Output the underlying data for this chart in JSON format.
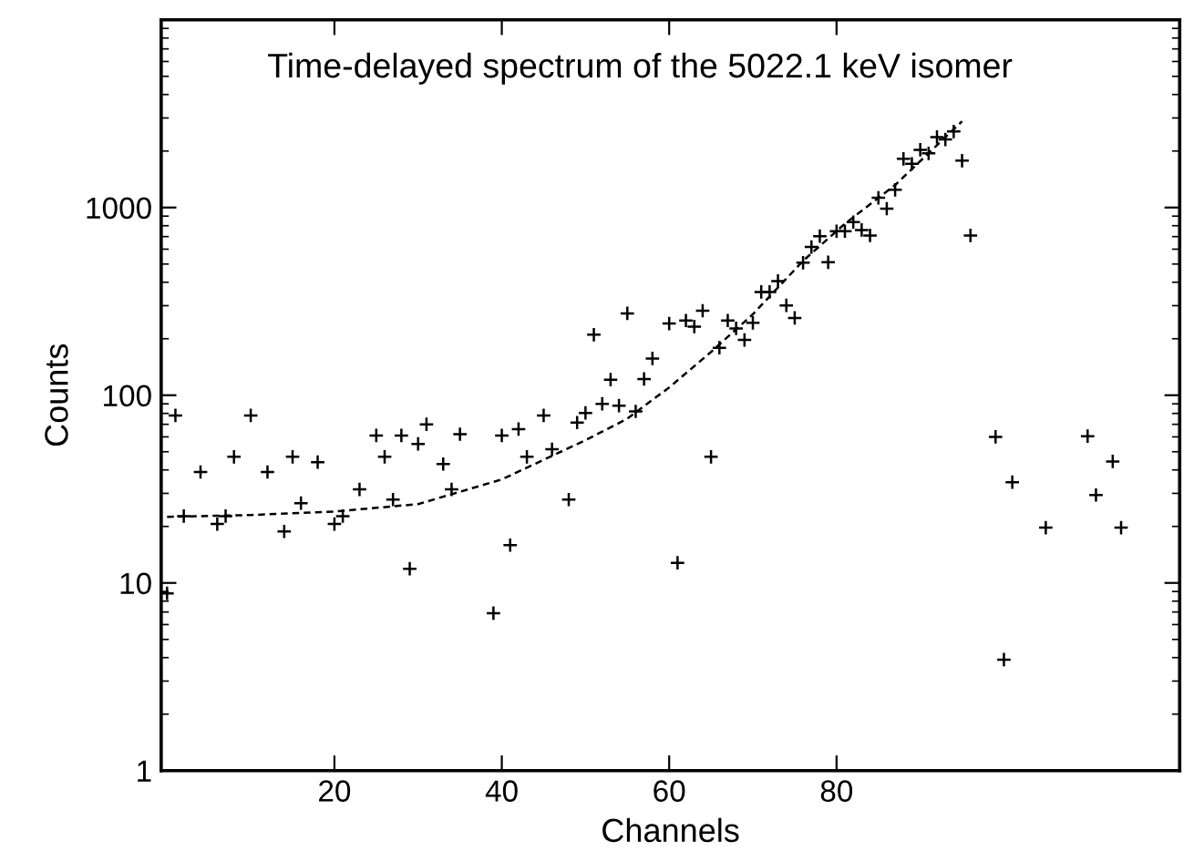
{
  "chart_data": {
    "type": "scatter",
    "title": "Time-delayed spectrum of the 5022.1 keV isomer",
    "xlabel": "Channels",
    "ylabel": "Counts",
    "log": "y",
    "xlim": [
      -0.7,
      121
    ],
    "ylim": [
      1,
      10000
    ],
    "xticks": [
      20,
      40,
      60,
      80
    ],
    "yticks": [
      1,
      10,
      100,
      1000
    ],
    "grid": false,
    "series": [
      {
        "color": "#000000",
        "marker": "cross",
        "x": [
          0,
          1,
          2,
          4,
          6,
          7,
          8,
          10,
          12,
          14,
          15,
          16,
          18,
          20,
          21,
          23,
          25,
          26,
          27,
          28,
          29,
          30,
          31,
          33,
          34,
          35,
          39,
          40,
          41,
          42,
          43,
          45,
          46,
          48,
          49,
          50,
          51,
          52,
          53,
          54,
          55,
          56,
          57,
          58,
          60,
          61,
          62,
          63,
          64,
          65,
          66,
          67,
          68,
          69,
          70,
          71,
          72,
          73,
          74,
          75,
          76,
          77,
          78,
          79,
          80,
          81,
          82,
          83,
          84,
          85,
          86,
          87,
          88,
          89,
          90,
          91,
          92,
          93,
          94,
          95,
          96,
          99,
          100,
          101,
          105,
          110,
          111,
          113,
          114
        ],
        "values": [
          8.8,
          78,
          22.7,
          39,
          20.6,
          22.7,
          47,
          78,
          39,
          18.8,
          47,
          26.6,
          44,
          20.6,
          22.7,
          31.5,
          61,
          47,
          27.8,
          61,
          11.9,
          55,
          70,
          43,
          31.5,
          62,
          6.9,
          61,
          15.9,
          66,
          47,
          78,
          51.5,
          27.8,
          71.5,
          80.5,
          210,
          90,
          121,
          88,
          273,
          82,
          122,
          157,
          241,
          12.8,
          250,
          232,
          282,
          47,
          179,
          250,
          227,
          197,
          243,
          355,
          355,
          406,
          301,
          258,
          508,
          616,
          704,
          511,
          748,
          748,
          836,
          759,
          710,
          1127,
          986,
          1243,
          1816,
          1710,
          2030,
          1942,
          2373,
          2303,
          2540,
          1776,
          710,
          60,
          3.9,
          34.4,
          19.7,
          60.5,
          29.4,
          44.4,
          19.7
        ]
      },
      {
        "type": "line",
        "color": "#000000",
        "line_style": "dashed",
        "marker": "none",
        "x": [
          0,
          10,
          20,
          30,
          40,
          50,
          55,
          60,
          65,
          70,
          76,
          81,
          87,
          95
        ],
        "values": [
          22.5,
          23,
          24,
          26.3,
          35.6,
          57.6,
          75,
          110,
          170,
          270,
          520,
          820,
          1318,
          2880
        ]
      }
    ]
  }
}
